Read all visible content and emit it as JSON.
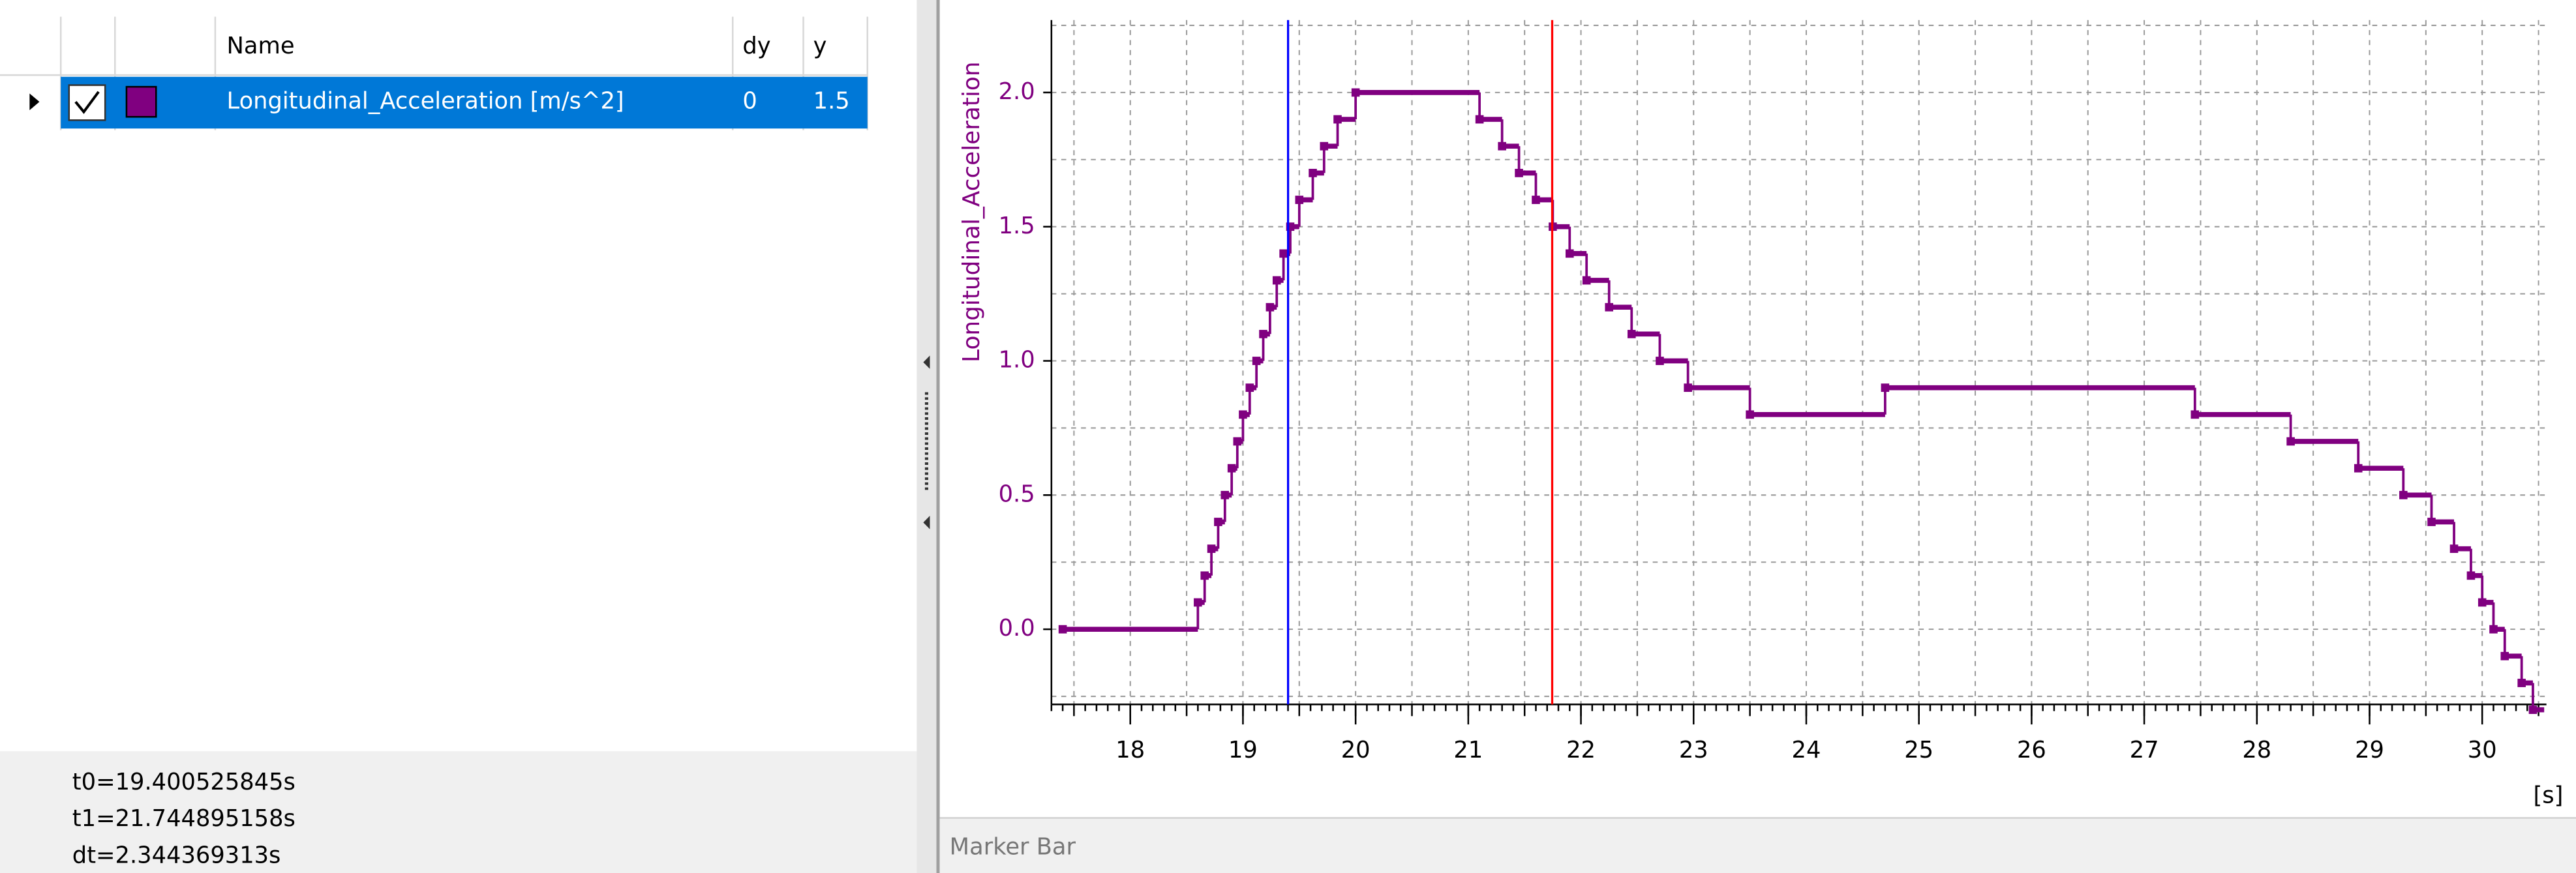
{
  "table": {
    "headers": [
      "Name",
      "dy",
      "y"
    ],
    "rows": [
      [
        "Longitudinal_Acceleration [m/s^2]",
        "0",
        "1.5"
      ]
    ]
  },
  "info": {
    "lines": [
      "t0=19.400525845s",
      "t1=21.744895158s",
      "dt=2.344369313s"
    ]
  },
  "marker_bar": "Marker Bar",
  "chart_data": {
    "type": "step",
    "ylabel": "Longitudinal_Acceleration",
    "xunit": "[s]",
    "xlim": [
      17.3,
      30.57
    ],
    "ylim": [
      -0.28,
      2.27
    ],
    "xticks": [
      18,
      19,
      20,
      21,
      22,
      23,
      24,
      25,
      26,
      27,
      28,
      29,
      30
    ],
    "yticks": [
      {
        "value": 0,
        "label": "0.0"
      },
      {
        "value": 0.5,
        "label": "0.5"
      },
      {
        "value": 1,
        "label": "1.0"
      },
      {
        "value": 1.5,
        "label": "1.5"
      },
      {
        "value": 2,
        "label": "2.0"
      }
    ],
    "grid": true,
    "series": [
      {
        "name": "Longitudinal_Acceleration [m/s^2]",
        "color": "#800080",
        "x": [
          17.4,
          18.6,
          18.66,
          18.72,
          18.78,
          18.84,
          18.9,
          18.95,
          19.0,
          19.06,
          19.12,
          19.18,
          19.24,
          19.3,
          19.36,
          19.42,
          19.5,
          19.62,
          19.72,
          19.84,
          20.0,
          21.1,
          21.3,
          21.45,
          21.6,
          21.75,
          21.9,
          22.05,
          22.25,
          22.45,
          22.7,
          22.95,
          23.5,
          24.7,
          27.45,
          28.3,
          28.9,
          29.3,
          29.55,
          29.75,
          29.9,
          30.0,
          30.1,
          30.2,
          30.35,
          30.45
        ],
        "values": [
          0,
          0.1,
          0.2,
          0.3,
          0.4,
          0.5,
          0.6,
          0.7,
          0.8,
          0.9,
          1.0,
          1.1,
          1.2,
          1.3,
          1.4,
          1.5,
          1.6,
          1.7,
          1.8,
          1.9,
          2.0,
          1.9,
          1.8,
          1.7,
          1.6,
          1.5,
          1.4,
          1.3,
          1.2,
          1.1,
          1.0,
          0.9,
          0.8,
          0.9,
          0.8,
          0.7,
          0.6,
          0.5,
          0.4,
          0.3,
          0.2,
          0.1,
          0.0,
          -0.1,
          -0.2,
          -0.3
        ],
        "x_end": 30.55
      }
    ],
    "markers": [
      {
        "color": "#0000ff",
        "x": 19.400525845
      },
      {
        "color": "#ff0000",
        "x": 21.744895158
      }
    ]
  }
}
